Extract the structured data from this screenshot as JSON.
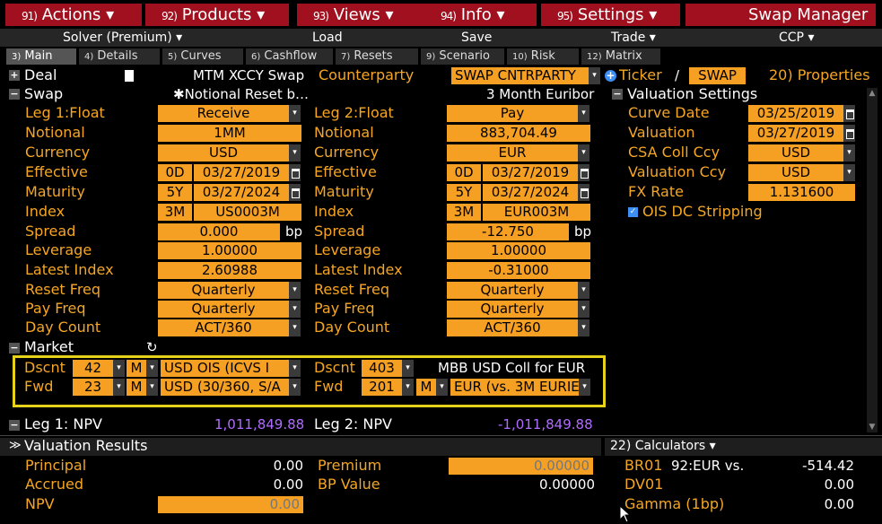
{
  "menu": [
    {
      "num": "91)",
      "label": "Actions ▾"
    },
    {
      "num": "92)",
      "label": "Products ▾"
    },
    {
      "num": "93)",
      "label": "Views ▾"
    },
    {
      "num": "94)",
      "label": "Info ▾"
    },
    {
      "num": "95)",
      "label": "Settings ▾"
    }
  ],
  "app_title": "Swap Manager",
  "subbar": {
    "solver": "Solver (Premium) ▾",
    "load": "Load",
    "save": "Save",
    "trade": "Trade ▾",
    "ccp": "CCP ▾"
  },
  "tabs": [
    {
      "num": "3)",
      "label": "Main"
    },
    {
      "num": "4)",
      "label": "Details"
    },
    {
      "num": "5)",
      "label": "Curves"
    },
    {
      "num": "6)",
      "label": "Cashflow"
    },
    {
      "num": "7)",
      "label": "Resets"
    },
    {
      "num": "9)",
      "label": "Scenario"
    },
    {
      "num": "10)",
      "label": "Risk"
    },
    {
      "num": "12)",
      "label": "Matrix"
    }
  ],
  "deal": {
    "label": "Deal",
    "type": "MTM XCCY Swap",
    "counterparty_label": "Counterparty",
    "counterparty": "SWAP CNTRPARTY",
    "ticker_label": "Ticker",
    "slash": "/",
    "ticker": "SWAP",
    "properties": "20) Properties"
  },
  "swap": {
    "label": "Swap",
    "notional_reset": "✱Notional Reset b…",
    "euribor": "3 Month Euribor"
  },
  "leg1": {
    "title": "Leg 1:Float",
    "direction": "Receive",
    "rows": {
      "notional_label": "Notional",
      "notional": "1MM",
      "currency_label": "Currency",
      "currency": "USD",
      "effective_label": "Effective",
      "effective_tenor": "0D",
      "effective": "03/27/2019",
      "maturity_label": "Maturity",
      "maturity_tenor": "5Y",
      "maturity": "03/27/2024",
      "index_label": "Index",
      "index_tenor": "3M",
      "index": "US0003M",
      "spread_label": "Spread",
      "spread": "0.000",
      "spread_unit": "bp",
      "leverage_label": "Leverage",
      "leverage": "1.00000",
      "latest_index_label": "Latest Index",
      "latest_index": "2.60988",
      "reset_freq_label": "Reset Freq",
      "reset_freq": "Quarterly",
      "pay_freq_label": "Pay Freq",
      "pay_freq": "Quarterly",
      "day_count_label": "Day Count",
      "day_count": "ACT/360"
    }
  },
  "leg2": {
    "title": "Leg 2:Float",
    "direction": "Pay",
    "rows": {
      "notional_label": "Notional",
      "notional": "883,704.49",
      "currency_label": "Currency",
      "currency": "EUR",
      "effective_label": "Effective",
      "effective_tenor": "0D",
      "effective": "03/27/2019",
      "maturity_label": "Maturity",
      "maturity_tenor": "5Y",
      "maturity": "03/27/2024",
      "index_label": "Index",
      "index_tenor": "3M",
      "index": "EUR003M",
      "spread_label": "Spread",
      "spread": "-12.750",
      "spread_unit": "bp",
      "leverage_label": "Leverage",
      "leverage": "1.00000",
      "latest_index_label": "Latest Index",
      "latest_index": "-0.31000",
      "reset_freq_label": "Reset Freq",
      "reset_freq": "Quarterly",
      "pay_freq_label": "Pay Freq",
      "pay_freq": "Quarterly",
      "day_count_label": "Day Count",
      "day_count": "ACT/360"
    }
  },
  "valuation_settings": {
    "label": "Valuation Settings",
    "curve_date_label": "Curve Date",
    "curve_date": "03/25/2019",
    "valuation_label": "Valuation",
    "valuation": "03/27/2019",
    "csa_label": "CSA Coll Ccy",
    "csa": "USD",
    "val_ccy_label": "Valuation Ccy",
    "val_ccy": "USD",
    "fx_label": "FX Rate",
    "fx": "1.131600",
    "ois_label": "OIS DC Stripping"
  },
  "market": {
    "label": "Market",
    "leg1_dscnt_label": "Dscnt",
    "leg1_dscnt_num": "42",
    "leg1_dscnt_m": "M",
    "leg1_dscnt_curve": "USD OIS     (ICVS I",
    "leg1_fwd_label": "Fwd",
    "leg1_fwd_num": "23",
    "leg1_fwd_m": "M",
    "leg1_fwd_curve": "USD (30/360, S/A",
    "leg2_dscnt_label": "Dscnt",
    "leg2_dscnt_num": "403",
    "leg2_dscnt_curve": "MBB USD Coll for EUR",
    "leg2_fwd_label": "Fwd",
    "leg2_fwd_num": "201",
    "leg2_fwd_m": "M",
    "leg2_fwd_curve": "EUR (vs. 3M EURIE"
  },
  "npv": {
    "leg1_label": "Leg 1: NPV",
    "leg1": "1,011,849.88",
    "leg2_label": "Leg 2: NPV",
    "leg2": "-1,011,849.88"
  },
  "results": {
    "label": "Valuation Results",
    "principal_label": "Principal",
    "principal": "0.00",
    "accrued_label": "Accrued",
    "accrued": "0.00",
    "npv_label": "NPV",
    "npv": "0.00",
    "premium_label": "Premium",
    "premium": "0.00000",
    "bp_label": "BP Value",
    "bp": "0.00000"
  },
  "calculators": {
    "label": "22) Calculators ▾",
    "br01_label": "BR01",
    "br01_desc": "92:EUR vs.",
    "br01": "-514.42",
    "dv01_label": "DV01",
    "dv01": "0.00",
    "gamma_label": "Gamma (1bp)",
    "gamma": "0.00"
  },
  "colors": {
    "accent": "#f5a023",
    "menu": "#a0101e",
    "purple": "#b06cff",
    "highlight": "#e6d21a"
  }
}
